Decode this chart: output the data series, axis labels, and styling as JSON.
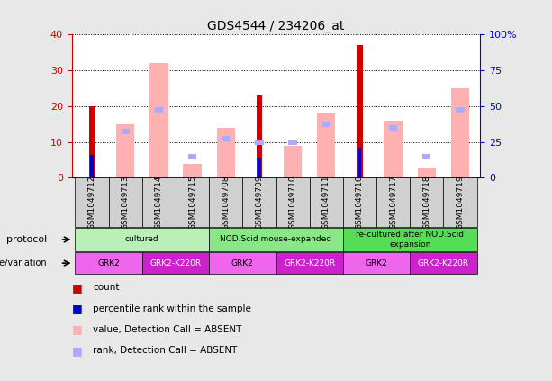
{
  "title": "GDS4544 / 234206_at",
  "samples": [
    "GSM1049712",
    "GSM1049713",
    "GSM1049714",
    "GSM1049715",
    "GSM1049708",
    "GSM1049709",
    "GSM1049710",
    "GSM1049711",
    "GSM1049716",
    "GSM1049717",
    "GSM1049718",
    "GSM1049719"
  ],
  "count_values": [
    20,
    0,
    0,
    0,
    0,
    23,
    0,
    0,
    37,
    0,
    0,
    0
  ],
  "percentile_values": [
    16,
    0,
    0,
    0,
    0,
    14,
    0,
    0,
    21,
    0,
    0,
    0
  ],
  "value_absent": [
    0,
    15,
    32,
    4,
    14,
    0,
    9,
    18,
    0,
    16,
    3,
    25
  ],
  "rank_absent_val": [
    0,
    13,
    19,
    6,
    11,
    0,
    10,
    15,
    0,
    14,
    6,
    19
  ],
  "rank_absent_small": [
    0,
    0,
    0,
    6,
    0,
    10,
    0,
    0,
    0,
    0,
    6,
    0
  ],
  "ylim_left": [
    0,
    40
  ],
  "ylim_right": [
    0,
    100
  ],
  "yticks_left": [
    0,
    10,
    20,
    30,
    40
  ],
  "yticks_right": [
    0,
    25,
    50,
    75,
    100
  ],
  "protocol_groups": [
    {
      "label": "cultured",
      "start": 0,
      "end": 4,
      "color": "#b8f0b8"
    },
    {
      "label": "NOD.Scid mouse-expanded",
      "start": 4,
      "end": 8,
      "color": "#88e888"
    },
    {
      "label": "re-cultured after NOD.Scid\nexpansion",
      "start": 8,
      "end": 12,
      "color": "#55dd55"
    }
  ],
  "genotype_groups": [
    {
      "label": "GRK2",
      "start": 0,
      "end": 2,
      "color": "#ee66ee",
      "text_color": "black"
    },
    {
      "label": "GRK2-K220R",
      "start": 2,
      "end": 4,
      "color": "#cc22cc",
      "text_color": "white"
    },
    {
      "label": "GRK2",
      "start": 4,
      "end": 6,
      "color": "#ee66ee",
      "text_color": "black"
    },
    {
      "label": "GRK2-K220R",
      "start": 6,
      "end": 8,
      "color": "#cc22cc",
      "text_color": "white"
    },
    {
      "label": "GRK2",
      "start": 8,
      "end": 10,
      "color": "#ee66ee",
      "text_color": "black"
    },
    {
      "label": "GRK2-K220R",
      "start": 10,
      "end": 12,
      "color": "#cc22cc",
      "text_color": "white"
    }
  ],
  "count_color": "#cc0000",
  "percentile_color": "#0000cc",
  "value_absent_color": "#ffb0b0",
  "rank_absent_color": "#aaaaff",
  "bg_color": "#e8e8e8",
  "plot_bg": "#ffffff",
  "sample_box_color": "#d0d0d0"
}
